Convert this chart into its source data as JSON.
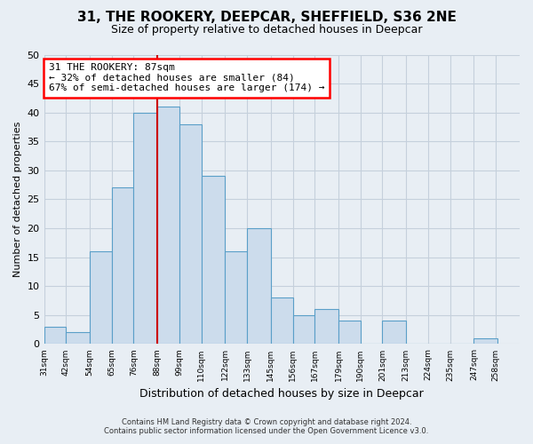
{
  "title": "31, THE ROOKERY, DEEPCAR, SHEFFIELD, S36 2NE",
  "subtitle": "Size of property relative to detached houses in Deepcar",
  "xlabel": "Distribution of detached houses by size in Deepcar",
  "ylabel": "Number of detached properties",
  "bin_labels": [
    "31sqm",
    "42sqm",
    "54sqm",
    "65sqm",
    "76sqm",
    "88sqm",
    "99sqm",
    "110sqm",
    "122sqm",
    "133sqm",
    "145sqm",
    "156sqm",
    "167sqm",
    "179sqm",
    "190sqm",
    "201sqm",
    "213sqm",
    "224sqm",
    "235sqm",
    "247sqm",
    "258sqm"
  ],
  "bin_edges": [
    31,
    42,
    54,
    65,
    76,
    88,
    99,
    110,
    122,
    133,
    145,
    156,
    167,
    179,
    190,
    201,
    213,
    224,
    235,
    247,
    258
  ],
  "bar_heights": [
    3,
    2,
    16,
    27,
    40,
    41,
    38,
    29,
    16,
    20,
    8,
    5,
    6,
    4,
    0,
    4,
    0,
    0,
    0,
    1
  ],
  "bar_color": "#ccdcec",
  "bar_edge_color": "#5a9fc8",
  "highlight_bin_index": 5,
  "highlight_color": "#cc0000",
  "annotation_line1": "31 THE ROOKERY: 87sqm",
  "annotation_line2": "← 32% of detached houses are smaller (84)",
  "annotation_line3": "67% of semi-detached houses are larger (174) →",
  "ylim": [
    0,
    50
  ],
  "yticks": [
    0,
    5,
    10,
    15,
    20,
    25,
    30,
    35,
    40,
    45,
    50
  ],
  "footer_line1": "Contains HM Land Registry data © Crown copyright and database right 2024.",
  "footer_line2": "Contains public sector information licensed under the Open Government Licence v3.0.",
  "bg_color": "#e8eef4",
  "plot_bg_color": "#e8eef4",
  "grid_color": "#c5d0dc"
}
